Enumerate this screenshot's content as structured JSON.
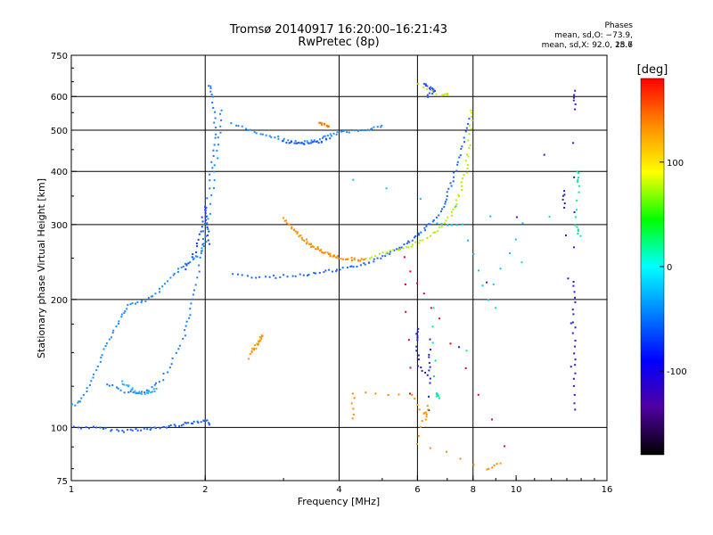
{
  "title": "Tromsø 20140917 16:20:00–16:21:43",
  "subtitle": "RwPretec (8p)",
  "phase_box": {
    "heading": "Phases",
    "line_o": "mean, sd,O: −73.9, 15.7",
    "line_x": "mean, sd,X:  92.0, 28.6"
  },
  "chart_data": {
    "type": "scatter",
    "xlabel": "Frequency [MHz]",
    "ylabel": "Stationary phase Virtual Height [km]",
    "xscale": "log",
    "yscale": "log",
    "xlim": [
      1,
      16
    ],
    "ylim": [
      75,
      750
    ],
    "x_ticks": [
      1,
      2,
      4,
      6,
      8,
      10,
      16
    ],
    "x_tick_labels": [
      "1",
      "2",
      "4",
      "6",
      "8",
      "10",
      "16"
    ],
    "y_ticks": [
      75,
      100,
      200,
      300,
      400,
      500,
      600,
      750
    ],
    "y_tick_labels": [
      "75",
      "100",
      "200",
      "300",
      "400",
      "500",
      "600",
      "750"
    ],
    "vertical_gridlines": [
      2,
      4,
      6,
      8
    ],
    "horizontal_gridlines": [
      100,
      200,
      300,
      400,
      500,
      600
    ],
    "grid": true,
    "colorbar": {
      "label": "[deg]",
      "range": [
        -180,
        180
      ],
      "ticks": [
        100,
        0,
        -100
      ],
      "tick_labels": [
        "100",
        "0",
        "-100"
      ],
      "colors": [
        "#ff0000",
        "#ff8c00",
        "#ffff00",
        "#00ff00",
        "#00ffff",
        "#0080ff",
        "#0000ff",
        "#5000a0",
        "#000000"
      ]
    },
    "series": [
      {
        "phase": -100,
        "color": "#2060ff",
        "points": [
          [
            1.0,
            100
          ],
          [
            1.1,
            100
          ],
          [
            1.2,
            99
          ],
          [
            1.3,
            98
          ],
          [
            1.4,
            99
          ],
          [
            1.5,
            99
          ],
          [
            1.6,
            100
          ],
          [
            1.7,
            101
          ],
          [
            1.8,
            102
          ],
          [
            1.9,
            103
          ],
          [
            2.0,
            104
          ],
          [
            2.05,
            102
          ]
        ]
      },
      {
        "phase": -90,
        "color": "#1a8cff",
        "points": [
          [
            1.0,
            112
          ],
          [
            1.05,
            115
          ],
          [
            1.1,
            125
          ],
          [
            1.15,
            140
          ],
          [
            1.2,
            155
          ],
          [
            1.25,
            170
          ],
          [
            1.3,
            185
          ],
          [
            1.35,
            195
          ],
          [
            1.45,
            198
          ],
          [
            1.55,
            205
          ],
          [
            1.65,
            222
          ],
          [
            1.75,
            235
          ],
          [
            1.85,
            245
          ],
          [
            1.95,
            255
          ],
          [
            2.0,
            275
          ],
          [
            2.05,
            320
          ],
          [
            2.1,
            400
          ],
          [
            2.15,
            480
          ],
          [
            2.18,
            560
          ]
        ]
      },
      {
        "phase": -95,
        "color": "#1e78ff",
        "points": [
          [
            1.2,
            127
          ],
          [
            1.3,
            122
          ],
          [
            1.4,
            120
          ],
          [
            1.5,
            122
          ],
          [
            1.6,
            130
          ],
          [
            1.7,
            145
          ],
          [
            1.8,
            165
          ],
          [
            1.85,
            185
          ],
          [
            1.9,
            210
          ],
          [
            1.95,
            250
          ],
          [
            2.0,
            300
          ],
          [
            2.05,
            380
          ],
          [
            2.1,
            450
          ],
          [
            2.1,
            520
          ],
          [
            2.08,
            600
          ],
          [
            2.05,
            640
          ]
        ]
      },
      {
        "phase": -85,
        "color": "#20b4ff",
        "points": [
          [
            1.3,
            128
          ],
          [
            1.35,
            124
          ],
          [
            1.4,
            121
          ],
          [
            1.45,
            120
          ],
          [
            1.5,
            121
          ],
          [
            1.55,
            123
          ]
        ]
      },
      {
        "phase": -110,
        "color": "#1a3cff",
        "points": [
          [
            1.8,
            235
          ],
          [
            1.9,
            260
          ],
          [
            1.95,
            290
          ],
          [
            2.0,
            330
          ],
          [
            2.02,
            300
          ],
          [
            2.05,
            270
          ]
        ]
      },
      {
        "phase": -95,
        "color": "#1e8cff",
        "points": [
          [
            2.3,
            520
          ],
          [
            2.5,
            500
          ],
          [
            2.7,
            490
          ],
          [
            2.9,
            480
          ],
          [
            3.1,
            470
          ],
          [
            3.3,
            468
          ],
          [
            3.5,
            470
          ],
          [
            3.7,
            480
          ],
          [
            3.9,
            490
          ],
          [
            4.1,
            495
          ],
          [
            4.4,
            500
          ],
          [
            4.7,
            505
          ],
          [
            5.0,
            510
          ]
        ]
      },
      {
        "phase": -110,
        "color": "#2050ff",
        "points": [
          [
            3.0,
            470
          ],
          [
            3.2,
            465
          ],
          [
            3.4,
            465
          ],
          [
            3.6,
            470
          ],
          [
            3.8,
            475
          ]
        ]
      },
      {
        "phase": 110,
        "color": "#ff8c00",
        "points": [
          [
            3.0,
            310
          ],
          [
            3.1,
            298
          ],
          [
            3.2,
            288
          ],
          [
            3.3,
            280
          ],
          [
            3.4,
            272
          ],
          [
            3.5,
            266
          ],
          [
            3.6,
            262
          ],
          [
            3.7,
            258
          ],
          [
            3.8,
            255
          ],
          [
            3.9,
            253
          ],
          [
            4.0,
            251
          ],
          [
            4.2,
            249
          ],
          [
            4.4,
            248
          ],
          [
            4.6,
            248
          ]
        ]
      },
      {
        "phase": -95,
        "color": "#1e64ff",
        "points": [
          [
            2.3,
            228
          ],
          [
            2.6,
            226
          ],
          [
            2.9,
            226
          ],
          [
            3.2,
            228
          ],
          [
            3.5,
            230
          ],
          [
            3.8,
            233
          ],
          [
            4.1,
            236
          ],
          [
            4.4,
            240
          ],
          [
            4.7,
            245
          ],
          [
            5.0,
            252
          ],
          [
            5.3,
            260
          ],
          [
            5.6,
            268
          ],
          [
            5.9,
            278
          ],
          [
            6.2,
            290
          ],
          [
            6.5,
            305
          ],
          [
            6.8,
            325
          ],
          [
            7.0,
            350
          ],
          [
            7.2,
            380
          ],
          [
            7.4,
            420
          ],
          [
            7.6,
            470
          ],
          [
            7.8,
            530
          ]
        ]
      },
      {
        "phase": 95,
        "color": "#b4f000",
        "points": [
          [
            4.6,
            250
          ],
          [
            5.0,
            256
          ],
          [
            5.4,
            262
          ],
          [
            5.8,
            268
          ],
          [
            6.2,
            276
          ],
          [
            6.6,
            288
          ],
          [
            7.0,
            305
          ],
          [
            7.3,
            330
          ],
          [
            7.5,
            360
          ],
          [
            7.7,
            400
          ],
          [
            7.8,
            440
          ],
          [
            7.9,
            500
          ],
          [
            7.95,
            560
          ]
        ]
      },
      {
        "phase": 130,
        "color": "#ff7800",
        "points": [
          [
            3.6,
            520
          ],
          [
            3.7,
            515
          ],
          [
            3.8,
            512
          ]
        ]
      },
      {
        "phase": 120,
        "color": "#ff9600",
        "points": [
          [
            2.55,
            150
          ],
          [
            2.6,
            155
          ],
          [
            2.65,
            160
          ],
          [
            2.7,
            165
          ],
          [
            2.5,
            145
          ]
        ]
      },
      {
        "phase": -100,
        "color": "#1e50ff",
        "points": [
          [
            6.2,
            640
          ],
          [
            6.4,
            630
          ],
          [
            6.6,
            620
          ],
          [
            6.3,
            600
          ]
        ]
      },
      {
        "phase": 90,
        "color": "#c8e600",
        "points": [
          [
            6.0,
            640
          ],
          [
            6.8,
            600
          ],
          [
            7.0,
            610
          ]
        ]
      },
      {
        "phase": -120,
        "color": "#2020c8",
        "points": [
          [
            6.0,
            170
          ],
          [
            6.0,
            160
          ],
          [
            6.0,
            140
          ],
          [
            6.4,
            130
          ],
          [
            6.4,
            160
          ],
          [
            6.4,
            110
          ],
          [
            13.5,
            620
          ],
          [
            13.5,
            560
          ],
          [
            13.5,
            220
          ],
          [
            13.5,
            190
          ],
          [
            13.5,
            160
          ],
          [
            13.5,
            135
          ],
          [
            13.5,
            110
          ],
          [
            12.8,
            360
          ],
          [
            12.8,
            330
          ]
        ]
      },
      {
        "phase": 60,
        "color": "#00e8a0",
        "points": [
          [
            6.5,
            190
          ],
          [
            6.6,
            120
          ],
          [
            6.7,
            118
          ],
          [
            13.8,
            400
          ],
          [
            13.8,
            370
          ],
          [
            13.6,
            300
          ],
          [
            13.9,
            280
          ]
        ]
      },
      {
        "phase": 120,
        "color": "#ff8c00",
        "points": [
          [
            4.3,
            105
          ],
          [
            4.3,
            120
          ],
          [
            5.8,
            120
          ],
          [
            6.3,
            105
          ],
          [
            6.3,
            112
          ],
          [
            6.0,
            92
          ],
          [
            8.6,
            80
          ],
          [
            9.2,
            82
          ]
        ]
      },
      {
        "phase": 150,
        "color": "#e00020",
        "points": [
          [
            9.4,
            91
          ],
          [
            6.7,
            180
          ],
          [
            5.6,
            250
          ],
          [
            5.8,
            120
          ]
        ]
      },
      {
        "phase": 20,
        "color": "#00c8ff",
        "points": [
          [
            6.6,
            300
          ],
          [
            7.6,
            300
          ],
          [
            8.6,
            200
          ],
          [
            10.4,
            300
          ],
          [
            4.3,
            380
          ]
        ]
      }
    ]
  }
}
